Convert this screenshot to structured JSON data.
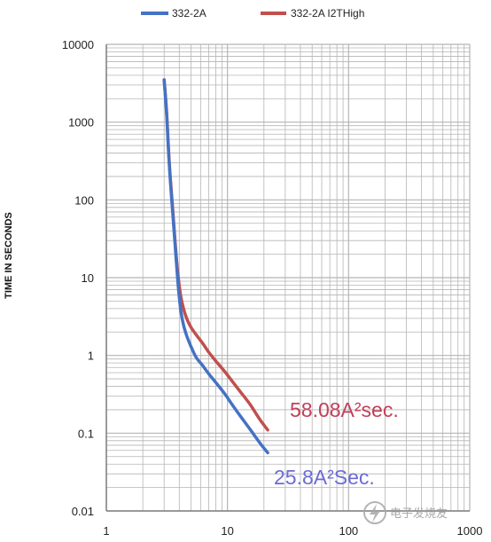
{
  "chart_data": {
    "type": "line",
    "title": "",
    "xlabel": "",
    "ylabel": "TIME IN SECONDS",
    "xscale": "log",
    "yscale": "log",
    "xlim": [
      1,
      1000
    ],
    "ylim": [
      0.01,
      10000
    ],
    "x_ticks": [
      "1",
      "10",
      "100",
      "1000"
    ],
    "y_ticks": [
      "10000",
      "1000",
      "100",
      "10",
      "1",
      "0.1",
      "0.01"
    ],
    "grid": true,
    "legend_position": "top",
    "series": [
      {
        "name": "332-2A",
        "color": "#4472c4",
        "x": [
          3.0,
          3.15,
          3.3,
          3.5,
          3.7,
          3.9,
          4.1,
          4.3,
          4.6,
          5.0,
          5.5,
          6.2,
          7.0,
          8.0,
          9.5,
          11.0,
          13.0,
          15.5,
          18.5,
          21.5
        ],
        "y": [
          3500,
          1200,
          300,
          80,
          25,
          8.5,
          4.0,
          2.6,
          1.8,
          1.3,
          0.95,
          0.75,
          0.58,
          0.45,
          0.32,
          0.23,
          0.16,
          0.11,
          0.075,
          0.056
        ]
      },
      {
        "name": "332-2A I2THigh",
        "color": "#c0504d",
        "x": [
          3.0,
          3.15,
          3.3,
          3.5,
          3.7,
          3.9,
          4.1,
          4.3,
          4.6,
          5.0,
          5.5,
          6.2,
          7.0,
          8.0,
          9.5,
          11.0,
          13.0,
          15.5,
          18.5,
          21.5
        ],
        "y": [
          3500,
          1300,
          320,
          90,
          28,
          11,
          6.0,
          4.2,
          3.0,
          2.3,
          1.85,
          1.45,
          1.1,
          0.85,
          0.62,
          0.46,
          0.33,
          0.23,
          0.15,
          0.11
        ]
      }
    ],
    "annotations": [
      {
        "text": "58.08A²sec.",
        "color": "#c0405a"
      },
      {
        "text": "25.8A²Sec.",
        "color": "#6b6bd6"
      }
    ]
  },
  "watermark": "电子发烧友",
  "colors": {
    "grid": "#b5b5b5",
    "axis": "#7f7f7f"
  }
}
